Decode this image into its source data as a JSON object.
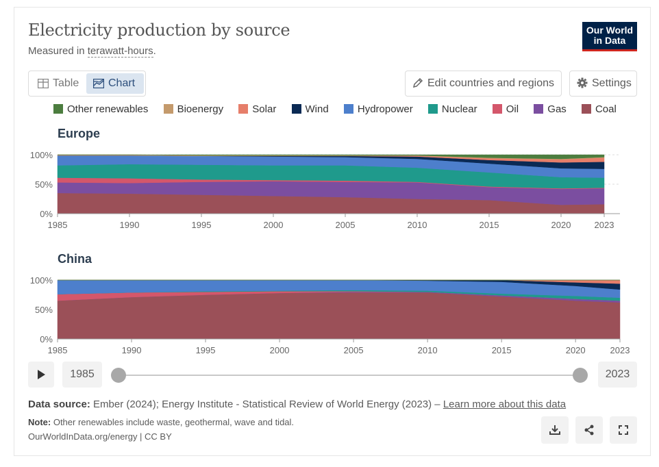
{
  "header": {
    "title": "Electricity production by source",
    "subtitle_prefix": "Measured in ",
    "subtitle_unit": "terawatt-hours",
    "subtitle_suffix": ".",
    "logo_line1": "Our World",
    "logo_line2": "in Data"
  },
  "tabs": [
    {
      "label": "Table",
      "icon": "table-icon",
      "active": false
    },
    {
      "label": "Chart",
      "icon": "chart-icon",
      "active": true
    }
  ],
  "buttons": {
    "edit_label": "Edit countries and regions",
    "settings_label": "Settings"
  },
  "colors": {
    "other_renewables": "#4c7d3f",
    "bioenergy": "#c49a6c",
    "solar": "#e67e6a",
    "wind": "#0b2a54",
    "hydropower": "#4d7fcc",
    "nuclear": "#1f9a8c",
    "oil": "#d4576b",
    "gas": "#7b4ea0",
    "coal": "#9b5058"
  },
  "chart_data": [
    {
      "type": "area",
      "stacked": "percent",
      "title": "Europe",
      "ylim": [
        0,
        100
      ],
      "y_ticks": [
        "0%",
        "50%",
        "100%"
      ],
      "x_ticks": [
        "1985",
        "1990",
        "1995",
        "2000",
        "2005",
        "2010",
        "2015",
        "2020",
        "2023"
      ],
      "x": [
        1985,
        1990,
        1995,
        2000,
        2005,
        2010,
        2015,
        2020,
        2023
      ],
      "legend_position": "top",
      "grid": true,
      "series": [
        {
          "name": "Coal",
          "key": "coal",
          "values": [
            35,
            34,
            32,
            30,
            28,
            25,
            23,
            15,
            16
          ]
        },
        {
          "name": "Gas",
          "key": "gas",
          "values": [
            18,
            18,
            22,
            25,
            26,
            28,
            22,
            27,
            27
          ]
        },
        {
          "name": "Oil",
          "key": "oil",
          "values": [
            8,
            8,
            4,
            2,
            2,
            1,
            1,
            1,
            1
          ]
        },
        {
          "name": "Nuclear",
          "key": "nuclear",
          "values": [
            21,
            24,
            25,
            25,
            26,
            24,
            24,
            19,
            17
          ]
        },
        {
          "name": "Hydropower",
          "key": "hydropower",
          "values": [
            17,
            15,
            15,
            15,
            14,
            15,
            15,
            15,
            15
          ]
        },
        {
          "name": "Wind",
          "key": "wind",
          "values": [
            0,
            0,
            0,
            1,
            2,
            4,
            6,
            10,
            12
          ]
        },
        {
          "name": "Solar",
          "key": "solar",
          "values": [
            0,
            0,
            0,
            0,
            0,
            1,
            3,
            5,
            7
          ]
        },
        {
          "name": "Bioenergy",
          "key": "bioenergy",
          "values": [
            1,
            1,
            1,
            1,
            1,
            1,
            1,
            1,
            1
          ]
        },
        {
          "name": "Other renewables",
          "key": "other_renewables",
          "values": [
            0,
            0,
            1,
            1,
            1,
            1,
            5,
            7,
            4
          ]
        }
      ]
    },
    {
      "type": "area",
      "stacked": "percent",
      "title": "China",
      "ylim": [
        0,
        100
      ],
      "y_ticks": [
        "0%",
        "50%",
        "100%"
      ],
      "x_ticks": [
        "1985",
        "1990",
        "1995",
        "2000",
        "2005",
        "2010",
        "2015",
        "2020",
        "2023"
      ],
      "x": [
        1985,
        1990,
        1995,
        2000,
        2005,
        2010,
        2015,
        2020,
        2023
      ],
      "legend_position": "top",
      "grid": true,
      "series": [
        {
          "name": "Coal",
          "key": "coal",
          "values": [
            65,
            71,
            75,
            78,
            79,
            79,
            72,
            65,
            62
          ]
        },
        {
          "name": "Gas",
          "key": "gas",
          "values": [
            0,
            0,
            0,
            0,
            1,
            1,
            2,
            3,
            3
          ]
        },
        {
          "name": "Oil",
          "key": "oil",
          "values": [
            11,
            8,
            5,
            3,
            1,
            0,
            0,
            0,
            0
          ]
        },
        {
          "name": "Nuclear",
          "key": "nuclear",
          "values": [
            0,
            0,
            1,
            1,
            2,
            2,
            3,
            5,
            5
          ]
        },
        {
          "name": "Hydropower",
          "key": "hydropower",
          "values": [
            24,
            21,
            19,
            18,
            17,
            17,
            20,
            17,
            14
          ]
        },
        {
          "name": "Wind",
          "key": "wind",
          "values": [
            0,
            0,
            0,
            0,
            0,
            1,
            3,
            6,
            10
          ]
        },
        {
          "name": "Solar",
          "key": "solar",
          "values": [
            0,
            0,
            0,
            0,
            0,
            0,
            0,
            4,
            6
          ]
        },
        {
          "name": "Bioenergy",
          "key": "bioenergy",
          "values": [
            0,
            0,
            0,
            0,
            0,
            0,
            0,
            0,
            0
          ]
        },
        {
          "name": "Other renewables",
          "key": "other_renewables",
          "values": [
            0,
            0,
            0,
            0,
            0,
            0,
            0,
            0,
            0
          ]
        }
      ]
    }
  ],
  "timeline": {
    "start_year": "1985",
    "end_year": "2023",
    "start_position": 0,
    "end_position": 1
  },
  "footer": {
    "source_label": "Data source:",
    "source_text": " Ember (2024); Energy Institute - Statistical Review of World Energy (2023) – ",
    "source_link": "Learn more about this data",
    "note_label": "Note:",
    "note_text": " Other renewables include waste, geothermal, wave and tidal.",
    "url_text": "OurWorldInData.org/energy | CC BY"
  }
}
